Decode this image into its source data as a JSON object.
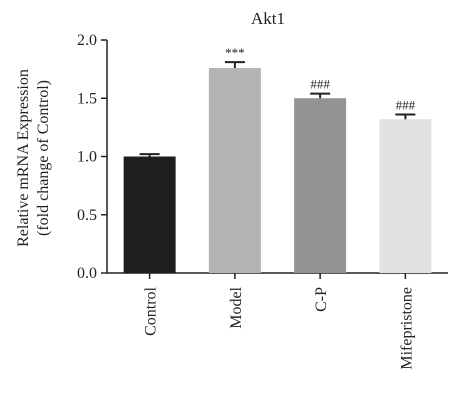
{
  "chart_data": {
    "type": "bar",
    "title": "Akt1",
    "ylabel_lines": [
      "Relative mRNA Expression",
      "(fold change of Control)"
    ],
    "xlabel": "",
    "categories": [
      "Control",
      "Model",
      "C-P",
      "Mifepristone"
    ],
    "values": [
      1.0,
      1.76,
      1.5,
      1.32
    ],
    "errors": [
      0.02,
      0.05,
      0.04,
      0.04
    ],
    "annotations": [
      "",
      "***",
      "###",
      "###"
    ],
    "ylim": [
      0,
      2.0
    ],
    "yticks": [
      "0.0",
      "0.5",
      "1.0",
      "1.5",
      "2.0"
    ],
    "bar_colors": [
      "#1e1e1e",
      "#b4b4b4",
      "#939393",
      "#e2e2e2"
    ],
    "grid": false,
    "legend": "none"
  }
}
